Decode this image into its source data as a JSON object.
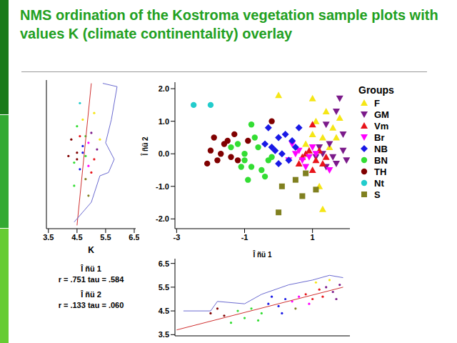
{
  "chart_data": [
    {
      "type": "scatter",
      "title": "NMS ordination of the Kostroma vegetation sample plots with values K (climate continentality) overlay",
      "x_label": "Î ñü 1",
      "y_label": "Î ñü 2",
      "legend_title": "Groups",
      "legend": "right",
      "xlim": [
        -3.05,
        2.1
      ],
      "xticks": [
        -3,
        -1,
        1
      ],
      "ylim": [
        -2.3,
        2.2
      ],
      "yticks": [
        {
          "value": 2,
          "label": "2.0"
        },
        {
          "value": 1,
          "label": "1.0"
        },
        {
          "value": 0,
          "label": "0.0"
        },
        {
          "value": -1,
          "label": "-1.0"
        },
        {
          "value": -2,
          "label": "-2.0"
        }
      ],
      "series": [
        {
          "name": "F",
          "color": "#f5e616",
          "marker": "triangle",
          "values": [
            [
              0.0,
              1.8
            ],
            [
              1.0,
              1.7
            ],
            [
              1.4,
              1.3
            ],
            [
              1.1,
              1.0
            ],
            [
              1.6,
              0.8
            ],
            [
              1.3,
              0.5
            ],
            [
              1.7,
              0.5
            ],
            [
              1.0,
              0.6
            ],
            [
              1.5,
              0.2
            ],
            [
              0.8,
              0.3
            ],
            [
              1.2,
              -1.0
            ],
            [
              1.3,
              -1.7
            ],
            [
              1.8,
              1.1
            ]
          ]
        },
        {
          "name": "GM",
          "color": "#7b1a8a",
          "marker": "triangle_down",
          "values": [
            [
              1.8,
              1.7
            ],
            [
              1.7,
              1.3
            ],
            [
              1.4,
              0.9
            ],
            [
              1.9,
              0.6
            ],
            [
              1.5,
              0.3
            ],
            [
              1.3,
              0.0
            ],
            [
              1.6,
              -0.1
            ],
            [
              1.9,
              0.1
            ],
            [
              1.1,
              -0.1
            ],
            [
              1.7,
              -0.3
            ],
            [
              2.0,
              -0.2
            ],
            [
              1.4,
              -0.4
            ],
            [
              1.2,
              0.2
            ]
          ]
        },
        {
          "name": "Vm",
          "color": "#e8141a",
          "marker": "triangle",
          "values": [
            [
              0.9,
              0.1
            ],
            [
              1.1,
              -0.2
            ],
            [
              0.7,
              -0.1
            ],
            [
              1.3,
              -0.3
            ],
            [
              1.0,
              -0.5
            ],
            [
              0.8,
              0.0
            ],
            [
              1.2,
              0.1
            ],
            [
              0.6,
              -0.3
            ],
            [
              1.0,
              0.9
            ],
            [
              1.4,
              -0.1
            ]
          ]
        },
        {
          "name": "Br",
          "color": "#ff00ff",
          "marker": "triangle_down",
          "values": [
            [
              0.5,
              0.0
            ],
            [
              0.7,
              -0.2
            ],
            [
              0.9,
              -0.1
            ],
            [
              0.6,
              0.1
            ],
            [
              0.3,
              -0.2
            ],
            [
              1.0,
              0.2
            ],
            [
              0.4,
              0.3
            ],
            [
              0.8,
              -0.4
            ],
            [
              1.1,
              0.0
            ],
            [
              1.5,
              -0.5
            ]
          ]
        },
        {
          "name": "NB",
          "color": "#1919e6",
          "marker": "diamond",
          "values": [
            [
              -0.3,
              0.8
            ],
            [
              0.0,
              0.5
            ],
            [
              0.2,
              0.6
            ],
            [
              -0.2,
              0.2
            ],
            [
              0.1,
              0.0
            ],
            [
              0.4,
              0.4
            ],
            [
              -0.4,
              0.3
            ],
            [
              0.3,
              -0.2
            ],
            [
              0.0,
              -0.3
            ],
            [
              -0.1,
              0.1
            ],
            [
              0.5,
              0.2
            ],
            [
              0.6,
              0.8
            ]
          ]
        },
        {
          "name": "BN",
          "color": "#33dd33",
          "marker": "circle",
          "values": [
            [
              -1.2,
              0.3
            ],
            [
              -1.0,
              0.0
            ],
            [
              -0.8,
              -0.4
            ],
            [
              -0.6,
              0.2
            ],
            [
              -0.5,
              -0.5
            ],
            [
              -0.9,
              -0.8
            ],
            [
              -0.3,
              -0.2
            ],
            [
              -1.1,
              -0.4
            ],
            [
              -0.7,
              0.5
            ],
            [
              -1.4,
              0.2
            ],
            [
              -0.4,
              -0.7
            ],
            [
              -0.2,
              -0.1
            ],
            [
              -0.8,
              0.9
            ],
            [
              -1.0,
              -0.2
            ]
          ]
        },
        {
          "name": "TH",
          "color": "#800000",
          "marker": "circle",
          "values": [
            [
              -2.0,
              0.1
            ],
            [
              -1.8,
              -0.2
            ],
            [
              -1.6,
              0.3
            ],
            [
              -1.4,
              -0.1
            ],
            [
              -1.7,
              0.0
            ],
            [
              -2.1,
              -0.3
            ],
            [
              -1.2,
              -0.2
            ],
            [
              -1.5,
              0.4
            ],
            [
              -0.9,
              0.4
            ],
            [
              -1.9,
              0.5
            ],
            [
              -0.2,
              1.0
            ],
            [
              -1.3,
              0.6
            ]
          ]
        },
        {
          "name": "Nt",
          "color": "#22cccc",
          "marker": "circle",
          "values": [
            [
              -2.5,
              1.5
            ],
            [
              -2.0,
              1.5
            ]
          ]
        },
        {
          "name": "S",
          "color": "#808020",
          "marker": "square",
          "values": [
            [
              0.1,
              -1.0
            ],
            [
              0.5,
              -0.8
            ],
            [
              0.7,
              -1.3
            ],
            [
              1.1,
              -1.1
            ],
            [
              0.0,
              -1.8
            ],
            [
              0.8,
              -0.6
            ]
          ]
        }
      ]
    },
    {
      "type": "scatter",
      "x_label": "K",
      "annotations": [
        "Î ñü 1",
        "r = .751 tau = .584",
        "Î ñü 2",
        "r = .133 tau = .060"
      ],
      "tick_labels": "x",
      "xlim": [
        3.43,
        6.55
      ],
      "xticks": [
        3.5,
        4.5,
        5.5,
        6.5
      ],
      "ylim": [
        -2.3,
        2.2
      ],
      "series": [
        {
          "type": "scatter",
          "marker": "dot",
          "colors": [
            "#e8141a",
            "#1919e6",
            "#33dd33",
            "#800000",
            "#ff00ff",
            "#33dd33",
            "#7b1a8a",
            "#1919e6",
            "#800000",
            "#e8141a",
            "#f5e616",
            "#808020",
            "#33dd33",
            "#7b1a8a",
            "#800000",
            "#ff00ff",
            "#22cccc",
            "#f5e616",
            "#33dd33",
            "#e8141a",
            "#1919e6",
            "#33dd33",
            "#800000",
            "#f5e616",
            "#808020"
          ],
          "values": [
            [
              4.6,
              0.5
            ],
            [
              4.7,
              0.2
            ],
            [
              4.8,
              -0.1
            ],
            [
              4.5,
              0.0
            ],
            [
              4.9,
              0.3
            ],
            [
              4.4,
              -0.3
            ],
            [
              5.0,
              0.6
            ],
            [
              4.6,
              -0.5
            ],
            [
              4.3,
              0.4
            ],
            [
              5.1,
              -0.2
            ],
            [
              4.7,
              1.0
            ],
            [
              4.8,
              -0.8
            ],
            [
              4.5,
              0.8
            ],
            [
              5.2,
              0.1
            ],
            [
              4.2,
              -0.1
            ],
            [
              4.9,
              -0.4
            ],
            [
              4.6,
              1.5
            ],
            [
              5.3,
              0.4
            ],
            [
              4.4,
              -1.0
            ],
            [
              5.0,
              -0.6
            ],
            [
              4.7,
              0.0
            ],
            [
              4.8,
              0.5
            ],
            [
              4.5,
              -0.2
            ],
            [
              5.1,
              1.2
            ],
            [
              4.9,
              -1.3
            ]
          ]
        },
        {
          "type": "line",
          "color": "#d03030",
          "values": [
            [
              4.5,
              -2.2
            ],
            [
              5.0,
              2.1
            ]
          ]
        },
        {
          "type": "line",
          "color": "#6a6ad0",
          "values": [
            [
              5.4,
              2.1
            ],
            [
              5.9,
              2.0
            ],
            [
              5.7,
              1.0
            ],
            [
              5.5,
              0.3
            ],
            [
              5.8,
              -0.2
            ],
            [
              5.6,
              -0.6
            ],
            [
              5.3,
              -0.7
            ],
            [
              5.0,
              -1.5
            ],
            [
              4.4,
              -2.1
            ]
          ]
        }
      ]
    },
    {
      "type": "scatter",
      "tick_labels": "y",
      "xlim": [
        -3.05,
        2.1
      ],
      "ylim": [
        3.45,
        6.7
      ],
      "yticks": [
        3.5,
        4.5,
        5.5,
        6.5
      ],
      "series": [
        {
          "type": "scatter",
          "marker": "dot",
          "colors": [
            "#800000",
            "#800000",
            "#33dd33",
            "#33dd33",
            "#33dd33",
            "#33dd33",
            "#1919e6",
            "#1919e6",
            "#1919e6",
            "#ff00ff",
            "#ff00ff",
            "#e8141a",
            "#e8141a",
            "#e8141a",
            "#7b1a8a",
            "#7b1a8a",
            "#7b1a8a",
            "#f5e616",
            "#f5e616",
            "#808020",
            "#33dd33",
            "#33dd33",
            "#1919e6",
            "#800000",
            "#ff00ff",
            "#e8141a",
            "#1919e6",
            "#7b1a8a"
          ],
          "values": [
            [
              -2.0,
              4.4
            ],
            [
              -1.6,
              4.3
            ],
            [
              -1.2,
              4.5
            ],
            [
              -1.0,
              4.2
            ],
            [
              -0.8,
              4.6
            ],
            [
              -0.5,
              4.4
            ],
            [
              -0.3,
              4.8
            ],
            [
              0.0,
              4.7
            ],
            [
              0.2,
              5.0
            ],
            [
              0.4,
              4.9
            ],
            [
              0.6,
              5.1
            ],
            [
              0.8,
              5.2
            ],
            [
              1.0,
              5.0
            ],
            [
              1.2,
              5.4
            ],
            [
              1.4,
              5.5
            ],
            [
              1.6,
              5.3
            ],
            [
              1.8,
              5.6
            ],
            [
              1.1,
              5.7
            ],
            [
              1.5,
              5.8
            ],
            [
              0.5,
              4.6
            ],
            [
              -1.4,
              4.0
            ],
            [
              -0.6,
              4.1
            ],
            [
              0.1,
              4.4
            ],
            [
              -1.8,
              4.6
            ],
            [
              0.9,
              4.8
            ],
            [
              1.3,
              5.1
            ],
            [
              -0.2,
              5.1
            ],
            [
              1.7,
              5.0
            ]
          ]
        },
        {
          "type": "line",
          "color": "#d03030",
          "values": [
            [
              -3.0,
              3.7
            ],
            [
              1.9,
              5.5
            ]
          ]
        },
        {
          "type": "line",
          "color": "#6a6ad0",
          "values": [
            [
              -2.8,
              4.5
            ],
            [
              -2.0,
              4.5
            ],
            [
              -1.8,
              4.9
            ],
            [
              -1.0,
              4.8
            ],
            [
              -0.5,
              5.2
            ],
            [
              0.3,
              5.6
            ],
            [
              1.0,
              5.8
            ],
            [
              1.5,
              6.0
            ],
            [
              1.9,
              5.9
            ]
          ]
        }
      ]
    }
  ]
}
